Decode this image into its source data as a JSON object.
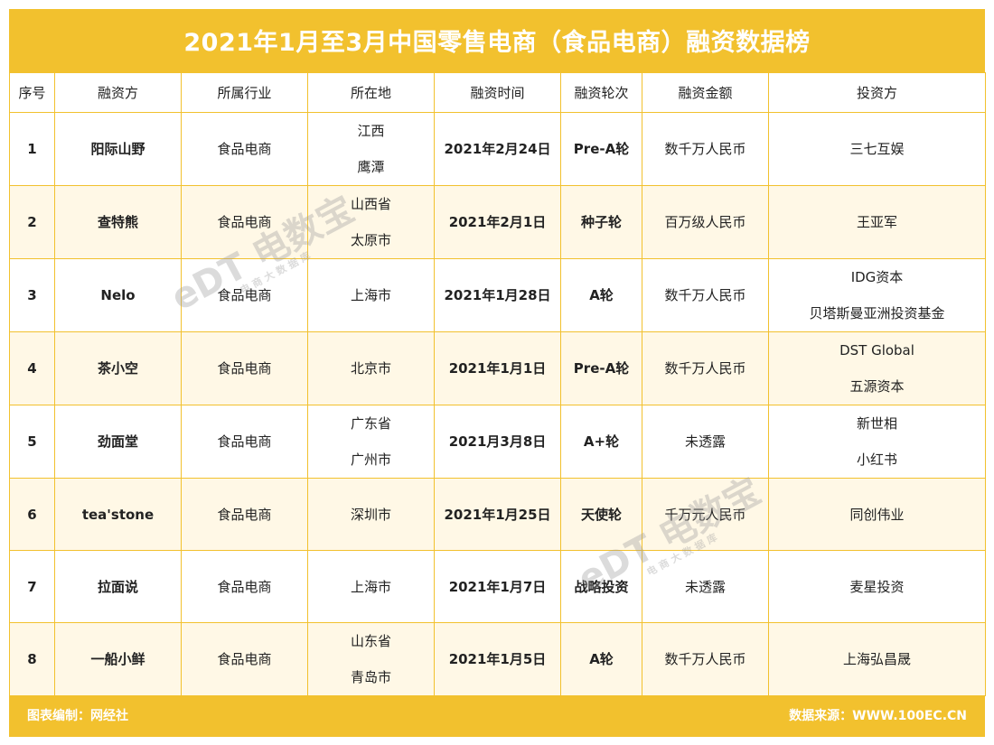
{
  "title": "2021年1月至3月中国零售电商（食品电商）融资数据榜",
  "headers": [
    "序号",
    "融资方",
    "所属行业",
    "所在地",
    "融资时间",
    "融资轮次",
    "融资金额",
    "投资方"
  ],
  "rows": [
    {
      "no": "1",
      "company": "阳际山野",
      "industry": "食品电商",
      "location": [
        "江西",
        "鹰潭"
      ],
      "date": "2021年2月24日",
      "round": "Pre-A轮",
      "amount": "数千万人民币",
      "investors": [
        "三七互娱"
      ]
    },
    {
      "no": "2",
      "company": "查特熊",
      "industry": "食品电商",
      "location": [
        "山西省",
        "太原市"
      ],
      "date": "2021年2月1日",
      "round": "种子轮",
      "amount": "百万级人民币",
      "investors": [
        "王亚军"
      ]
    },
    {
      "no": "3",
      "company": "Nelo",
      "industry": "食品电商",
      "location": [
        "上海市"
      ],
      "date": "2021年1月28日",
      "round": "A轮",
      "amount": "数千万人民币",
      "investors": [
        "IDG资本",
        "贝塔斯曼亚洲投资基金"
      ]
    },
    {
      "no": "4",
      "company": "茶小空",
      "industry": "食品电商",
      "location": [
        "北京市"
      ],
      "date": "2021年1月1日",
      "round": "Pre-A轮",
      "amount": "数千万人民币",
      "investors": [
        "DST Global",
        "五源资本"
      ]
    },
    {
      "no": "5",
      "company": "劲面堂",
      "industry": "食品电商",
      "location": [
        "广东省",
        "广州市"
      ],
      "date": "2021月3月8日",
      "round": "A+轮",
      "amount": "未透露",
      "investors": [
        "新世相",
        "小红书"
      ]
    },
    {
      "no": "6",
      "company": "tea'stone",
      "industry": "食品电商",
      "location": [
        "深圳市"
      ],
      "date": "2021年1月25日",
      "round": "天使轮",
      "amount": "千万元人民币",
      "investors": [
        "同创伟业"
      ]
    },
    {
      "no": "7",
      "company": "拉面说",
      "industry": "食品电商",
      "location": [
        "上海市"
      ],
      "date": "2021年1月7日",
      "round": "战略投资",
      "amount": "未透露",
      "investors": [
        "麦星投资"
      ]
    },
    {
      "no": "8",
      "company": "一船小鲜",
      "industry": "食品电商",
      "location": [
        "山东省",
        "青岛市"
      ],
      "date": "2021年1月5日",
      "round": "A轮",
      "amount": "数千万人民币",
      "investors": [
        "上海弘昌晟"
      ]
    }
  ],
  "footer": {
    "left": "图表编制：网经社",
    "right": "数据来源：WWW.100EC.CN"
  },
  "watermark": {
    "logo": "eDT 电数宝",
    "sub": "电商大数据库"
  },
  "colors": {
    "accent": "#f2c12e",
    "row_alt": "#fff8e6"
  }
}
